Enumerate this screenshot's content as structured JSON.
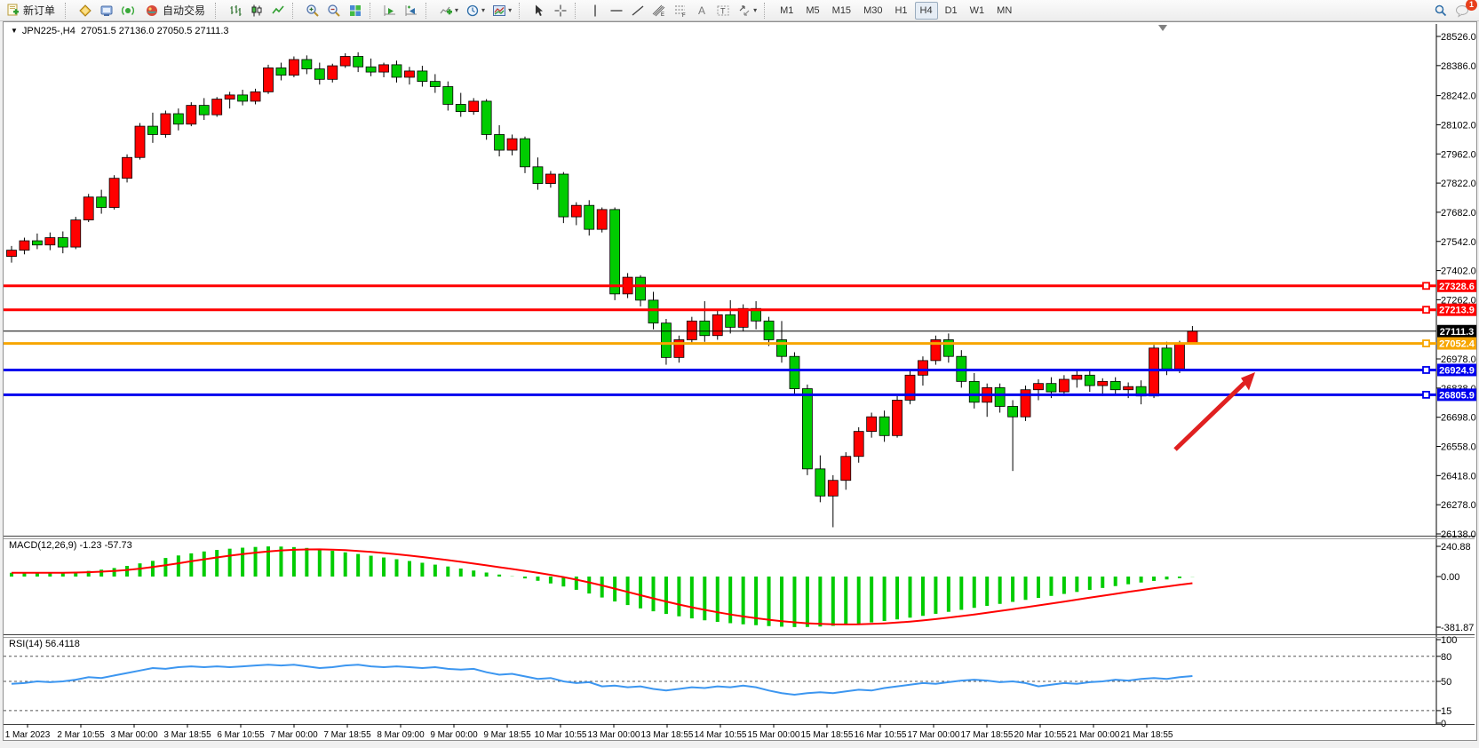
{
  "toolbar": {
    "new_order": "新订单",
    "autotrading": "自动交易",
    "timeframes": [
      "M1",
      "M5",
      "M15",
      "M30",
      "H1",
      "H4",
      "D1",
      "W1",
      "MN"
    ],
    "selected_timeframe": "H4",
    "notification_count": "1",
    "icons": [
      "new-order-icon",
      "gold-icon",
      "terminal-icon",
      "signal-icon",
      "autotrading-icon",
      "bar-chart-icon",
      "candlestick-icon",
      "line-chart-icon",
      "zoom-in-icon",
      "zoom-out-icon",
      "tile-windows-icon",
      "auto-scroll-icon",
      "chart-shift-icon",
      "indicators-icon",
      "periods-icon",
      "templates-icon",
      "cursor-icon",
      "crosshair-icon",
      "vertical-line-icon",
      "horizontal-line-icon",
      "trendline-icon",
      "equidistant-channel-icon",
      "fibonacci-icon",
      "text-icon",
      "text-label-icon",
      "shapes-icon",
      "search-icon",
      "chat-icon"
    ]
  },
  "chart": {
    "title_arrow": "▼",
    "symbol_period": "JPN225-,H4",
    "ohlc_text": "27051.5 27136.0 27050.5 27111.3",
    "price_ticks": [
      28526.0,
      28386.0,
      28242.0,
      28102.0,
      27962.0,
      27822.0,
      27682.0,
      27542.0,
      27402.0,
      27262.0,
      26978.0,
      26838.0,
      26698.0,
      26558.0,
      26418.0,
      26278.0,
      26138.0
    ],
    "lines": [
      {
        "name": "resistance-line-1",
        "price": 27328.6,
        "badge": "27328.6",
        "color": "#ff0000",
        "width": 3
      },
      {
        "name": "resistance-line-2",
        "price": 27213.9,
        "badge": "27213.9",
        "color": "#ff0000",
        "width": 3
      },
      {
        "name": "current-price-line",
        "price": 27111.3,
        "badge": "27111.3",
        "color": "#000000",
        "width": 1
      },
      {
        "name": "pivot-line",
        "price": 27052.4,
        "badge": "27052.4",
        "color": "#f7a600",
        "width": 3
      },
      {
        "name": "support-line-1",
        "price": 26924.9,
        "badge": "26924.9",
        "color": "#0000ee",
        "width": 3
      },
      {
        "name": "support-line-2",
        "price": 26805.9,
        "badge": "26805.9",
        "color": "#0000ee",
        "width": 3
      }
    ],
    "time_labels": [
      "1 Mar 2023",
      "2 Mar 10:55",
      "3 Mar 00:00",
      "3 Mar 18:55",
      "6 Mar 10:55",
      "7 Mar 00:00",
      "7 Mar 18:55",
      "8 Mar 09:00",
      "9 Mar 00:00",
      "9 Mar 18:55",
      "10 Mar 10:55",
      "13 Mar 00:00",
      "13 Mar 18:55",
      "14 Mar 10:55",
      "15 Mar 00:00",
      "15 Mar 18:55",
      "16 Mar 10:55",
      "17 Mar 00:00",
      "17 Mar 18:55",
      "20 Mar 10:55",
      "21 Mar 00:00",
      "21 Mar 18:55"
    ],
    "colors": {
      "up": "#ff0000",
      "down": "#00cc00",
      "wick": "#000000",
      "rsi_line": "#3c96f0",
      "macd_hist": "#00cc00",
      "macd_signal": "#ff0000",
      "arrow": "#e02020"
    }
  },
  "chart_data": {
    "type": "candlestick",
    "symbol": "JPN225-",
    "period": "H4",
    "note": "ohlc rows are [open,high,low,close]; red body = close>=open (Chinese convention), green = close<open",
    "ohlc": [
      [
        27470,
        27520,
        27440,
        27500
      ],
      [
        27500,
        27560,
        27480,
        27545
      ],
      [
        27545,
        27580,
        27505,
        27525
      ],
      [
        27525,
        27585,
        27500,
        27560
      ],
      [
        27560,
        27590,
        27485,
        27515
      ],
      [
        27515,
        27660,
        27505,
        27645
      ],
      [
        27645,
        27770,
        27635,
        27755
      ],
      [
        27755,
        27790,
        27675,
        27705
      ],
      [
        27705,
        27860,
        27695,
        27845
      ],
      [
        27845,
        27960,
        27825,
        27945
      ],
      [
        27945,
        28110,
        27935,
        28095
      ],
      [
        28095,
        28160,
        28015,
        28055
      ],
      [
        28055,
        28170,
        28040,
        28155
      ],
      [
        28155,
        28180,
        28075,
        28105
      ],
      [
        28105,
        28210,
        28095,
        28195
      ],
      [
        28195,
        28230,
        28125,
        28150
      ],
      [
        28150,
        28235,
        28140,
        28225
      ],
      [
        28225,
        28260,
        28180,
        28245
      ],
      [
        28245,
        28270,
        28195,
        28215
      ],
      [
        28215,
        28275,
        28200,
        28260
      ],
      [
        28260,
        28390,
        28250,
        28375
      ],
      [
        28375,
        28400,
        28315,
        28340
      ],
      [
        28340,
        28430,
        28330,
        28415
      ],
      [
        28415,
        28435,
        28345,
        28370
      ],
      [
        28370,
        28400,
        28295,
        28320
      ],
      [
        28320,
        28395,
        28305,
        28385
      ],
      [
        28385,
        28445,
        28375,
        28430
      ],
      [
        28430,
        28450,
        28355,
        28380
      ],
      [
        28380,
        28420,
        28335,
        28355
      ],
      [
        28355,
        28400,
        28330,
        28390
      ],
      [
        28390,
        28410,
        28305,
        28330
      ],
      [
        28330,
        28380,
        28295,
        28360
      ],
      [
        28360,
        28385,
        28285,
        28310
      ],
      [
        28310,
        28345,
        28255,
        28285
      ],
      [
        28285,
        28310,
        28170,
        28200
      ],
      [
        28200,
        28255,
        28140,
        28165
      ],
      [
        28165,
        28230,
        28150,
        28215
      ],
      [
        28215,
        28225,
        28030,
        28055
      ],
      [
        28055,
        28100,
        27950,
        27980
      ],
      [
        27980,
        28055,
        27955,
        28035
      ],
      [
        28035,
        28045,
        27870,
        27900
      ],
      [
        27900,
        27945,
        27790,
        27820
      ],
      [
        27820,
        27880,
        27800,
        27865
      ],
      [
        27865,
        27875,
        27630,
        27660
      ],
      [
        27660,
        27730,
        27620,
        27715
      ],
      [
        27715,
        27740,
        27570,
        27600
      ],
      [
        27600,
        27705,
        27585,
        27695
      ],
      [
        27695,
        27705,
        27260,
        27290
      ],
      [
        27290,
        27390,
        27270,
        27370
      ],
      [
        27370,
        27380,
        27230,
        27260
      ],
      [
        27260,
        27300,
        27120,
        27150
      ],
      [
        27150,
        27170,
        26950,
        26985
      ],
      [
        26985,
        27090,
        26960,
        27070
      ],
      [
        27070,
        27180,
        27050,
        27160
      ],
      [
        27160,
        27255,
        27060,
        27090
      ],
      [
        27090,
        27210,
        27070,
        27190
      ],
      [
        27190,
        27260,
        27100,
        27130
      ],
      [
        27130,
        27240,
        27110,
        27220
      ],
      [
        27220,
        27255,
        27120,
        27160
      ],
      [
        27160,
        27180,
        27040,
        27070
      ],
      [
        27070,
        27160,
        26960,
        26990
      ],
      [
        26990,
        27010,
        26810,
        26835
      ],
      [
        26835,
        26855,
        26420,
        26450
      ],
      [
        26450,
        26515,
        26290,
        26320
      ],
      [
        26320,
        26420,
        26170,
        26395
      ],
      [
        26395,
        26530,
        26350,
        26510
      ],
      [
        26510,
        26650,
        26480,
        26630
      ],
      [
        26630,
        26720,
        26600,
        26700
      ],
      [
        26700,
        26730,
        26580,
        26610
      ],
      [
        26610,
        26800,
        26600,
        26780
      ],
      [
        26780,
        26920,
        26760,
        26900
      ],
      [
        26900,
        26990,
        26850,
        26970
      ],
      [
        26970,
        27090,
        26950,
        27070
      ],
      [
        27070,
        27100,
        26960,
        26990
      ],
      [
        26990,
        27020,
        26840,
        26870
      ],
      [
        26870,
        26910,
        26740,
        26770
      ],
      [
        26770,
        26860,
        26700,
        26840
      ],
      [
        26840,
        26860,
        26720,
        26750
      ],
      [
        26750,
        26780,
        26440,
        26700
      ],
      [
        26700,
        26850,
        26680,
        26830
      ],
      [
        26830,
        26880,
        26780,
        26860
      ],
      [
        26860,
        26890,
        26790,
        26820
      ],
      [
        26820,
        26900,
        26800,
        26880
      ],
      [
        26880,
        26920,
        26840,
        26900
      ],
      [
        26900,
        26930,
        26820,
        26850
      ],
      [
        26850,
        26885,
        26800,
        26870
      ],
      [
        26870,
        26890,
        26810,
        26830
      ],
      [
        26830,
        26865,
        26790,
        26845
      ],
      [
        26845,
        26875,
        26760,
        26800
      ],
      [
        26800,
        27045,
        26790,
        27030
      ],
      [
        27030,
        27060,
        26900,
        26930
      ],
      [
        26930,
        27065,
        26910,
        27055
      ],
      [
        27051.5,
        27136.0,
        27050.5,
        27111.3
      ]
    ],
    "macd": {
      "label": "MACD(12,26,9) -1.23 -57.73",
      "axis": [
        "240.88",
        "0.00",
        "-381.87"
      ],
      "histogram": [
        30,
        32,
        28,
        30,
        34,
        38,
        45,
        55,
        68,
        85,
        105,
        125,
        148,
        168,
        185,
        200,
        212,
        222,
        230,
        236,
        240,
        239,
        235,
        228,
        218,
        206,
        193,
        180,
        166,
        152,
        138,
        124,
        110,
        95,
        80,
        64,
        48,
        32,
        16,
        2,
        -14,
        -32,
        -52,
        -75,
        -100,
        -128,
        -158,
        -188,
        -215,
        -240,
        -262,
        -282,
        -300,
        -316,
        -330,
        -342,
        -352,
        -360,
        -367,
        -373,
        -378,
        -381,
        -380,
        -377,
        -372,
        -365,
        -356,
        -346,
        -335,
        -323,
        -310,
        -296,
        -281,
        -266,
        -251,
        -236,
        -221,
        -206,
        -191,
        -176,
        -161,
        -146,
        -131,
        -116,
        -101,
        -86,
        -72,
        -58,
        -45,
        -33,
        -22,
        -12,
        -1.23
      ]
    },
    "rsi": {
      "label": "RSI(14) 56.4118",
      "levels": [
        100,
        80,
        50,
        15,
        0
      ],
      "values": [
        47,
        48,
        50,
        49,
        50,
        52,
        55,
        54,
        57,
        60,
        63,
        66,
        65,
        67,
        68,
        67,
        68,
        67,
        68,
        69,
        70,
        69,
        70,
        68,
        66,
        67,
        69,
        70,
        68,
        67,
        68,
        67,
        66,
        67,
        65,
        64,
        65,
        61,
        58,
        59,
        56,
        53,
        54,
        50,
        48,
        49,
        44,
        45,
        43,
        44,
        41,
        39,
        41,
        43,
        42,
        44,
        43,
        45,
        43,
        39,
        36,
        34,
        36,
        37,
        36,
        38,
        40,
        39,
        42,
        44,
        46,
        48,
        47,
        49,
        51,
        52,
        51,
        49,
        50,
        48,
        44,
        46,
        48,
        47,
        49,
        50,
        52,
        51,
        53,
        54,
        53,
        55,
        56.41
      ]
    }
  }
}
